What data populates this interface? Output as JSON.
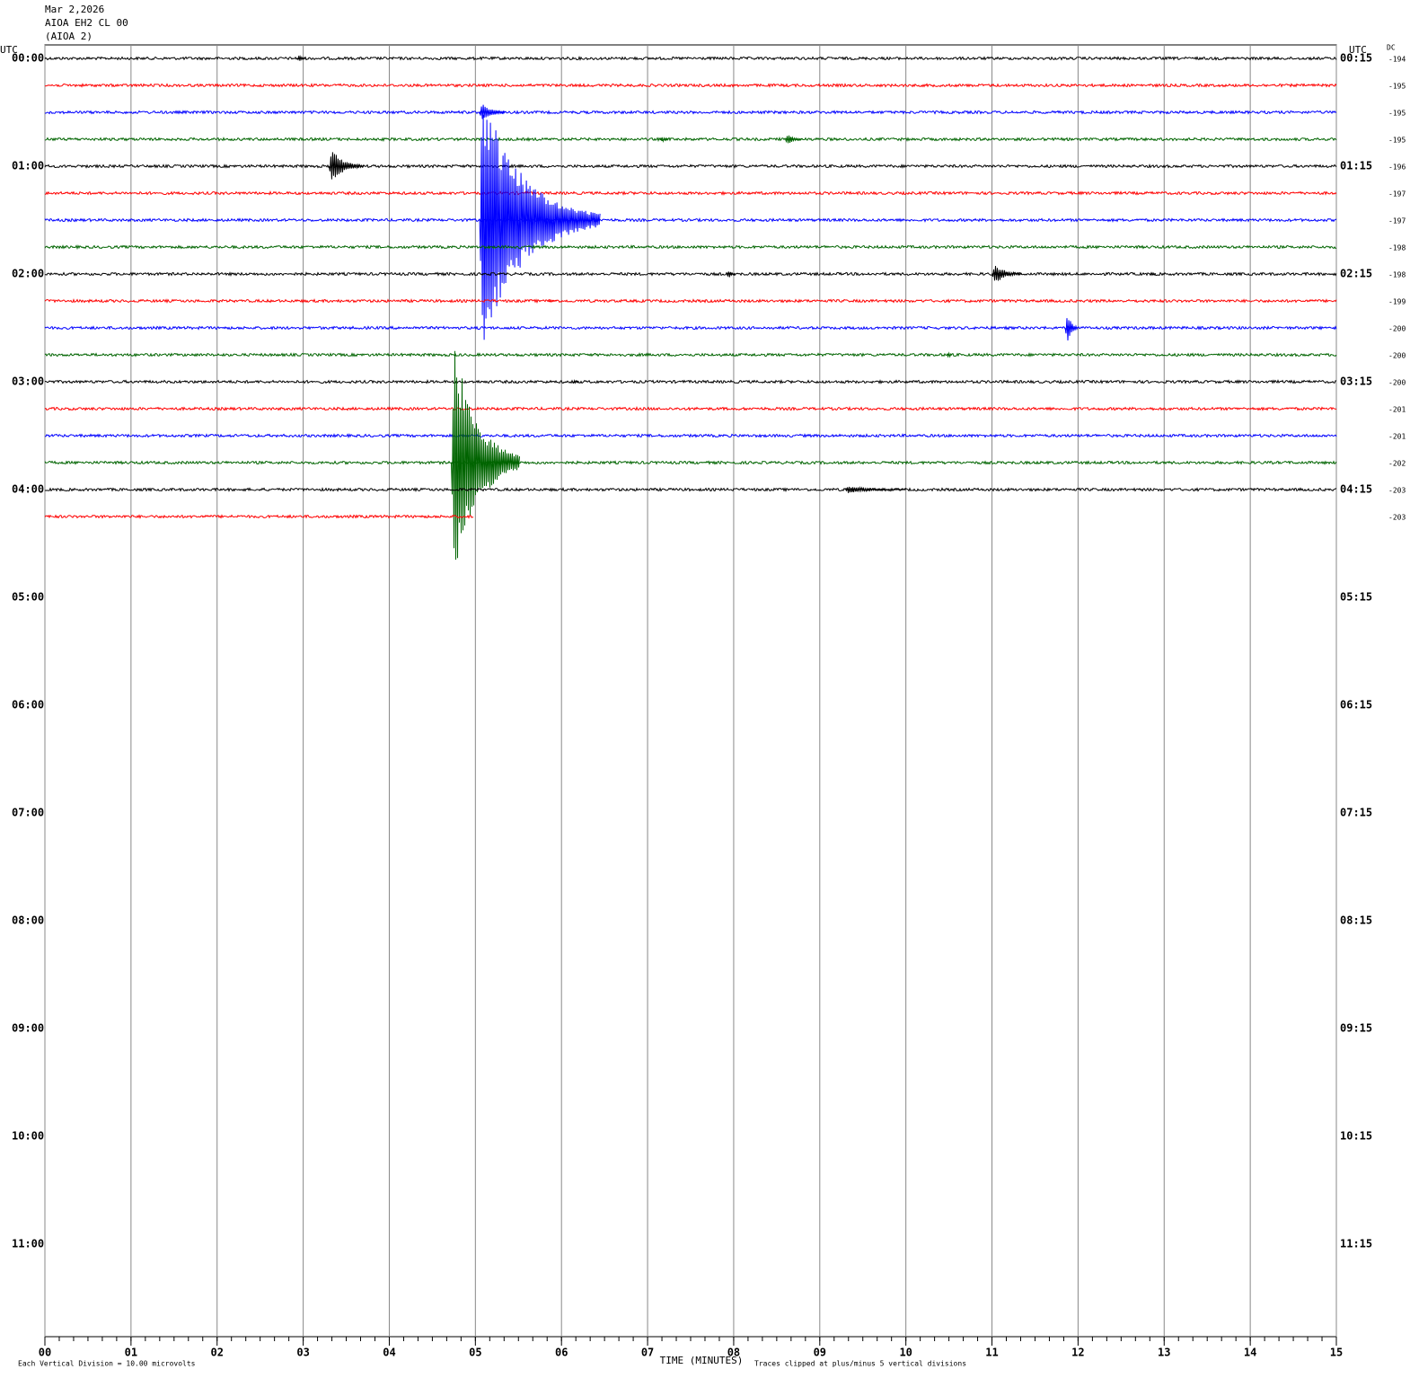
{
  "chart_data": {
    "type": "helicorder",
    "header": [
      "Mar 2,2026",
      "AIOA EH2 CL 00",
      "(AIOA 2)"
    ],
    "left_axis_title": "UTC",
    "right_axis_title": "UTC",
    "dc_title": "DC",
    "xlabel": "TIME (MINUTES)",
    "footer_left": "Each Vertical Division =   10.00 microvolts",
    "footer_right": "Traces clipped at plus/minus 5 vertical divisions",
    "xlim": [
      0,
      15
    ],
    "xticks": [
      {
        "value": 0,
        "label": "00"
      },
      {
        "value": 1,
        "label": "01"
      },
      {
        "value": 2,
        "label": "02"
      },
      {
        "value": 3,
        "label": "03"
      },
      {
        "value": 4,
        "label": "04"
      },
      {
        "value": 5,
        "label": "05"
      },
      {
        "value": 6,
        "label": "06"
      },
      {
        "value": 7,
        "label": "07"
      },
      {
        "value": 8,
        "label": "08"
      },
      {
        "value": 9,
        "label": "09"
      },
      {
        "value": 10,
        "label": "10"
      },
      {
        "value": 11,
        "label": "11"
      },
      {
        "value": 12,
        "label": "12"
      },
      {
        "value": 13,
        "label": "13"
      },
      {
        "value": 14,
        "label": "14"
      },
      {
        "value": 15,
        "label": "15"
      }
    ],
    "left_labels": [
      "00:00",
      "01:00",
      "02:00",
      "03:00",
      "04:00",
      "05:00",
      "06:00",
      "07:00",
      "08:00",
      "09:00",
      "10:00",
      "11:00"
    ],
    "right_labels": [
      "00:15",
      "01:15",
      "02:15",
      "03:15",
      "04:15",
      "05:15",
      "06:15",
      "07:15",
      "08:15",
      "09:15",
      "10:15",
      "11:15"
    ],
    "traces": [
      {
        "color": "#000000",
        "dc": -194,
        "events": [
          {
            "x": 2.93,
            "amplitude": 0.3,
            "duration": 0.1
          }
        ]
      },
      {
        "color": "#ff0000",
        "dc": -195,
        "events": []
      },
      {
        "color": "#0000ff",
        "dc": -195,
        "events": [
          {
            "x": 5.05,
            "amplitude": 0.5,
            "duration": 0.3
          }
        ]
      },
      {
        "color": "#006400",
        "dc": -195,
        "events": [
          {
            "x": 7.15,
            "amplitude": 0.2,
            "duration": 0.1
          },
          {
            "x": 8.6,
            "amplitude": 0.3,
            "duration": 0.2
          }
        ]
      },
      {
        "color": "#000000",
        "dc": -196,
        "events": [
          {
            "x": 3.3,
            "amplitude": 0.8,
            "duration": 0.4
          }
        ]
      },
      {
        "color": "#ff0000",
        "dc": -197,
        "events": []
      },
      {
        "color": "#0000ff",
        "dc": -197,
        "events": [
          {
            "x": 5.05,
            "amplitude": 5,
            "duration": 1.4
          }
        ]
      },
      {
        "color": "#006400",
        "dc": -198,
        "events": []
      },
      {
        "color": "#000000",
        "dc": -198,
        "events": [
          {
            "x": 7.92,
            "amplitude": 0.3,
            "duration": 0.1
          },
          {
            "x": 11.0,
            "amplitude": 0.5,
            "duration": 0.35
          },
          {
            "x": 12.83,
            "amplitude": 0.2,
            "duration": 0.08
          }
        ]
      },
      {
        "color": "#ff0000",
        "dc": -199,
        "events": [
          {
            "x": 5.85,
            "amplitude": 0.15,
            "duration": 0.1
          }
        ]
      },
      {
        "color": "#0000ff",
        "dc": -200,
        "events": [
          {
            "x": 11.85,
            "amplitude": 0.9,
            "duration": 0.15
          }
        ]
      },
      {
        "color": "#006400",
        "dc": -200,
        "events": [
          {
            "x": 10.48,
            "amplitude": 0.4,
            "duration": 0.06
          }
        ]
      },
      {
        "color": "#000000",
        "dc": -200,
        "events": [
          {
            "x": 6.13,
            "amplitude": 0.2,
            "duration": 0.08
          }
        ]
      },
      {
        "color": "#ff0000",
        "dc": -201,
        "events": []
      },
      {
        "color": "#0000ff",
        "dc": -201,
        "events": []
      },
      {
        "color": "#006400",
        "dc": -202,
        "events": [
          {
            "x": 4.72,
            "amplitude": 5,
            "duration": 0.8
          }
        ]
      },
      {
        "color": "#000000",
        "dc": -203,
        "events": [
          {
            "x": 9.3,
            "amplitude": 0.15,
            "duration": 0.7
          }
        ]
      },
      {
        "color": "#ff0000",
        "dc": -203,
        "end": 4.98,
        "events": []
      }
    ]
  }
}
